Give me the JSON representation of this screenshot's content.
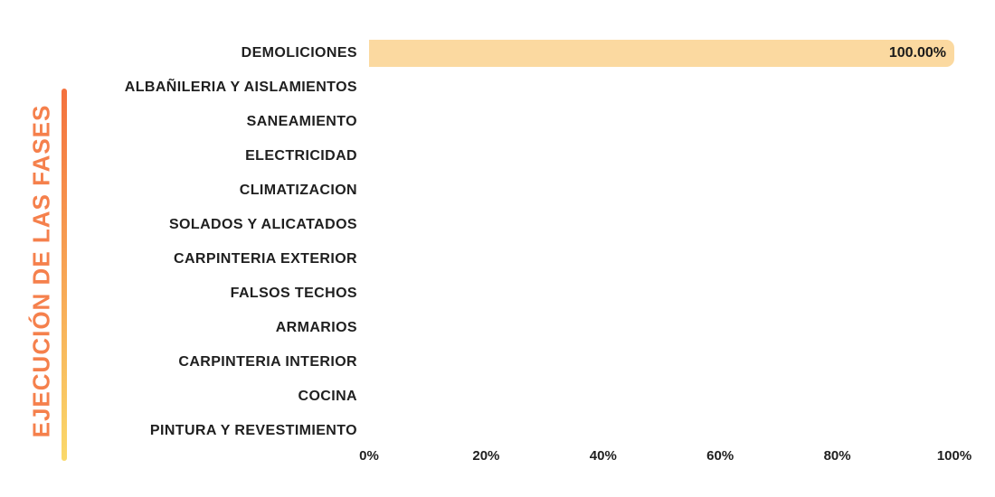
{
  "title": "EJECUCIÓN DE LAS FASES",
  "colors": {
    "bar_fill": "#FBD9A0",
    "title_text": "#F5804C",
    "accent_line_top": "#F4713E",
    "accent_line_bottom": "#FAD96B",
    "label_text": "#1F1F1F",
    "background": "#FFFFFF"
  },
  "chart_data": {
    "type": "bar",
    "orientation": "horizontal",
    "title": "EJECUCIÓN DE LAS FASES",
    "xlabel": "",
    "ylabel": "",
    "categories": [
      "DEMOLICIONES",
      "ALBAÑILERIA Y AISLAMIENTOS",
      "SANEAMIENTO",
      "ELECTRICIDAD",
      "CLIMATIZACION",
      "SOLADOS Y ALICATADOS",
      "CARPINTERIA EXTERIOR",
      "FALSOS TECHOS",
      "ARMARIOS",
      "CARPINTERIA INTERIOR",
      "COCINA",
      "PINTURA Y REVESTIMIENTO"
    ],
    "values": [
      100,
      0,
      0,
      0,
      0,
      0,
      0,
      0,
      0,
      0,
      0,
      0
    ],
    "value_labels": [
      "100.00%",
      "",
      "",
      "",
      "",
      "",
      "",
      "",
      "",
      "",
      "",
      ""
    ],
    "xlim": [
      0,
      100
    ],
    "x_ticks": [
      "0%",
      "20%",
      "40%",
      "60%",
      "80%",
      "100%"
    ],
    "grid": false,
    "legend": false
  }
}
